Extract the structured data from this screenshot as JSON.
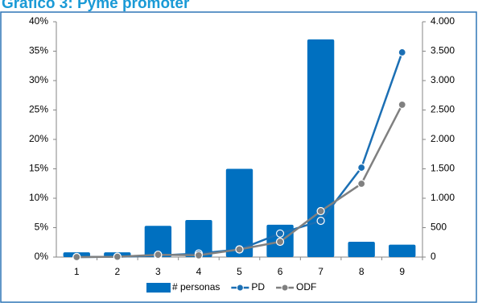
{
  "chart_data": {
    "type": "bar",
    "title": "Gráfico 3: Pyme promoter",
    "categories": [
      "1",
      "2",
      "3",
      "4",
      "5",
      "6",
      "7",
      "8",
      "9"
    ],
    "series": [
      {
        "name": "# personas",
        "type": "bar",
        "color": "#0070c0",
        "values": [
          0.8,
          0.8,
          5.3,
          6.3,
          15,
          5.5,
          37,
          2.6,
          2.1
        ]
      },
      {
        "name": "PD",
        "type": "line",
        "axis": "y2",
        "color": "#1b6fb4",
        "values": [
          0,
          5,
          25,
          60,
          130,
          400,
          616,
          1520,
          3480
        ]
      },
      {
        "name": "ODF",
        "type": "line",
        "axis": "y2",
        "color": "#808080",
        "values": [
          0,
          5,
          40,
          30,
          130,
          260,
          781,
          1247,
          2590
        ]
      }
    ],
    "ylim": [
      0,
      40
    ],
    "yticks": [
      {
        "value": 0,
        "label": "0%"
      },
      {
        "value": 5,
        "label": "5%"
      },
      {
        "value": 10,
        "label": "10%"
      },
      {
        "value": 15,
        "label": "15%"
      },
      {
        "value": 20,
        "label": "20%"
      },
      {
        "value": 25,
        "label": "25%"
      },
      {
        "value": 30,
        "label": "30%"
      },
      {
        "value": 35,
        "label": "35%"
      },
      {
        "value": 40,
        "label": "40%"
      }
    ],
    "y2lim": [
      0,
      4000
    ],
    "y2ticks": [
      0,
      500,
      {
        "value": 1000,
        "label": "1.000"
      },
      {
        "value": 1500,
        "label": "1.500"
      },
      {
        "value": 2000,
        "label": "2.000"
      },
      {
        "value": 2500,
        "label": "2.500"
      },
      {
        "value": 3000,
        "label": "3.000"
      },
      {
        "value": 3500,
        "label": "3.500"
      },
      {
        "value": 4000,
        "label": "4.000"
      }
    ],
    "legend": "bottom"
  }
}
